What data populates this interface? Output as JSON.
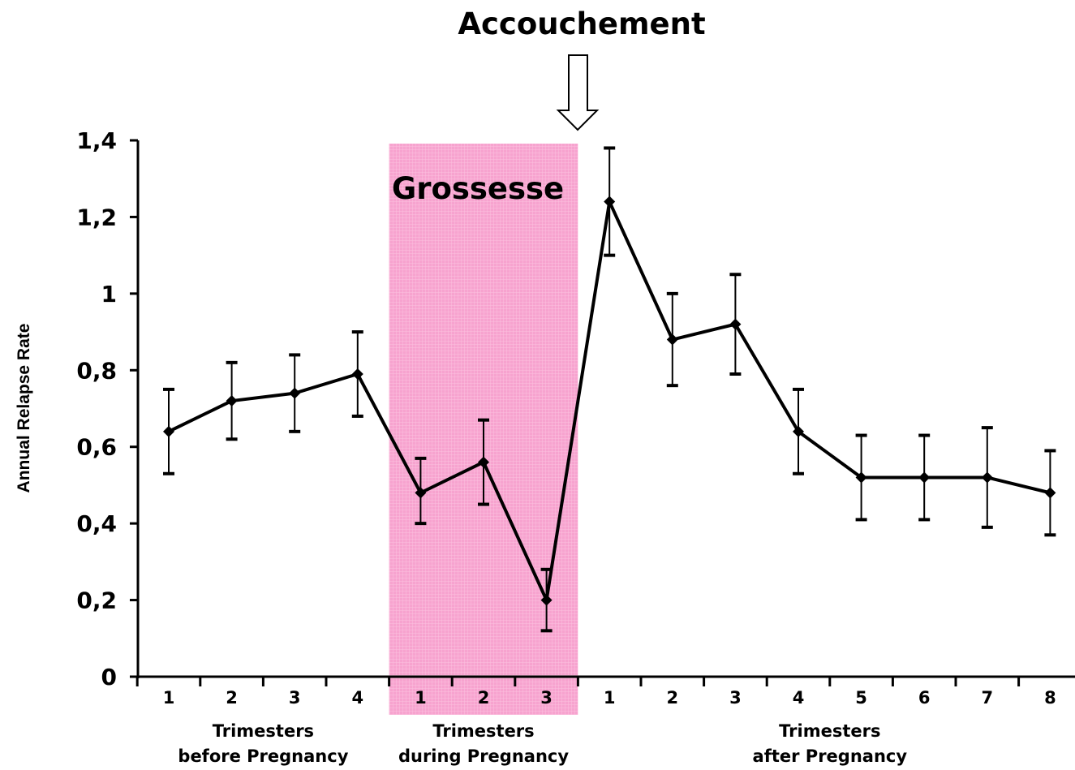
{
  "chart_data": {
    "type": "line",
    "title": "",
    "ylabel": "Annual Relapse Rate",
    "ylim": [
      0,
      1.4
    ],
    "y_ticks": [
      "0",
      "0,2",
      "0,4",
      "0,6",
      "0,8",
      "1",
      "1,2",
      "1,4"
    ],
    "y_tick_values": [
      0,
      0.2,
      0.4,
      0.6,
      0.8,
      1.0,
      1.2,
      1.4
    ],
    "categories": [
      "1",
      "2",
      "3",
      "4",
      "1",
      "2",
      "3",
      "1",
      "2",
      "3",
      "4",
      "5",
      "6",
      "7",
      "8"
    ],
    "groups": [
      {
        "label_line1": "Trimesters",
        "label_line2": "before Pregnancy",
        "count": 4
      },
      {
        "label_line1": "Trimesters",
        "label_line2": "during Pregnancy",
        "count": 3
      },
      {
        "label_line1": "Trimesters",
        "label_line2": "after Pregnancy",
        "count": 8
      }
    ],
    "series": [
      {
        "values": [
          0.64,
          0.72,
          0.74,
          0.79,
          0.48,
          0.56,
          0.2,
          1.24,
          0.88,
          0.92,
          0.64,
          0.52,
          0.52,
          0.52,
          0.48
        ],
        "err_upper": [
          0.75,
          0.82,
          0.84,
          0.9,
          0.57,
          0.67,
          0.28,
          1.38,
          1.0,
          1.05,
          0.75,
          0.63,
          0.63,
          0.65,
          0.59
        ],
        "err_lower": [
          0.53,
          0.62,
          0.64,
          0.68,
          0.4,
          0.45,
          0.12,
          1.1,
          0.76,
          0.79,
          0.53,
          0.41,
          0.41,
          0.39,
          0.37
        ]
      }
    ],
    "highlight": {
      "label": "Grossesse",
      "group_index": 1,
      "color": "#f9a8d4"
    },
    "annotation": {
      "label": "Accouchement",
      "marker": "down-arrow"
    },
    "grid": false,
    "line_color": "#000000"
  }
}
